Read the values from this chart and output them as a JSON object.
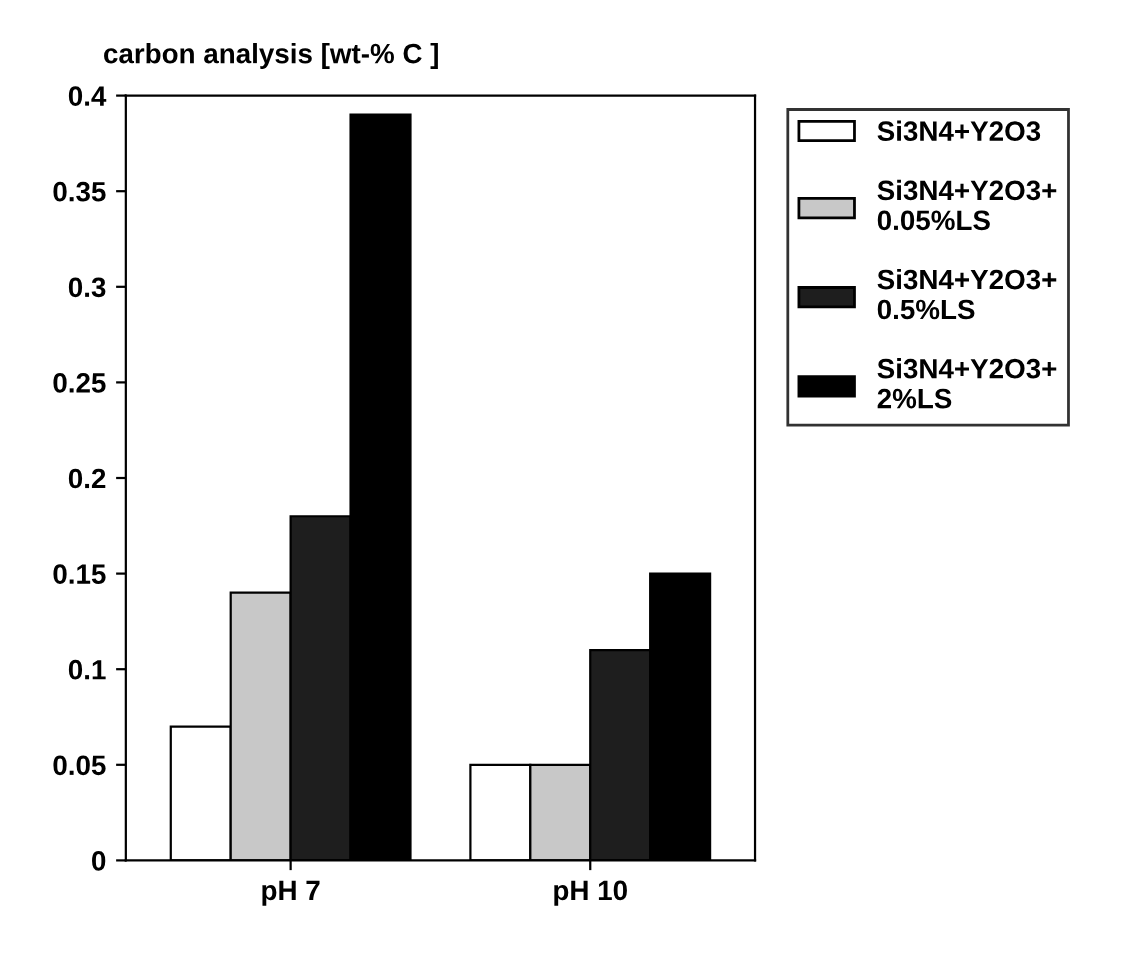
{
  "chart_data": {
    "type": "bar",
    "title": "carbon analysis [wt-% C ]",
    "categories": [
      "pH 7",
      "pH 10"
    ],
    "series": [
      {
        "name": "Si3N4+Y2O3",
        "color": "#ffffff",
        "values": [
          0.07,
          0.05
        ]
      },
      {
        "name": "Si3N4+Y2O3+\n0.05%LS",
        "color": "#c8c8c8",
        "values": [
          0.14,
          0.05
        ]
      },
      {
        "name": "Si3N4+Y2O3+\n0.5%LS",
        "color": "#1e1e1e",
        "values": [
          0.18,
          0.11
        ]
      },
      {
        "name": "Si3N4+Y2O3+\n2%LS",
        "color": "#000000",
        "values": [
          0.39,
          0.15
        ]
      }
    ],
    "ylim": [
      0,
      0.4
    ],
    "yticks": [
      0,
      0.05,
      0.1,
      0.15,
      0.2,
      0.25,
      0.3,
      0.35,
      0.4
    ],
    "grid": false,
    "legend": "right"
  }
}
